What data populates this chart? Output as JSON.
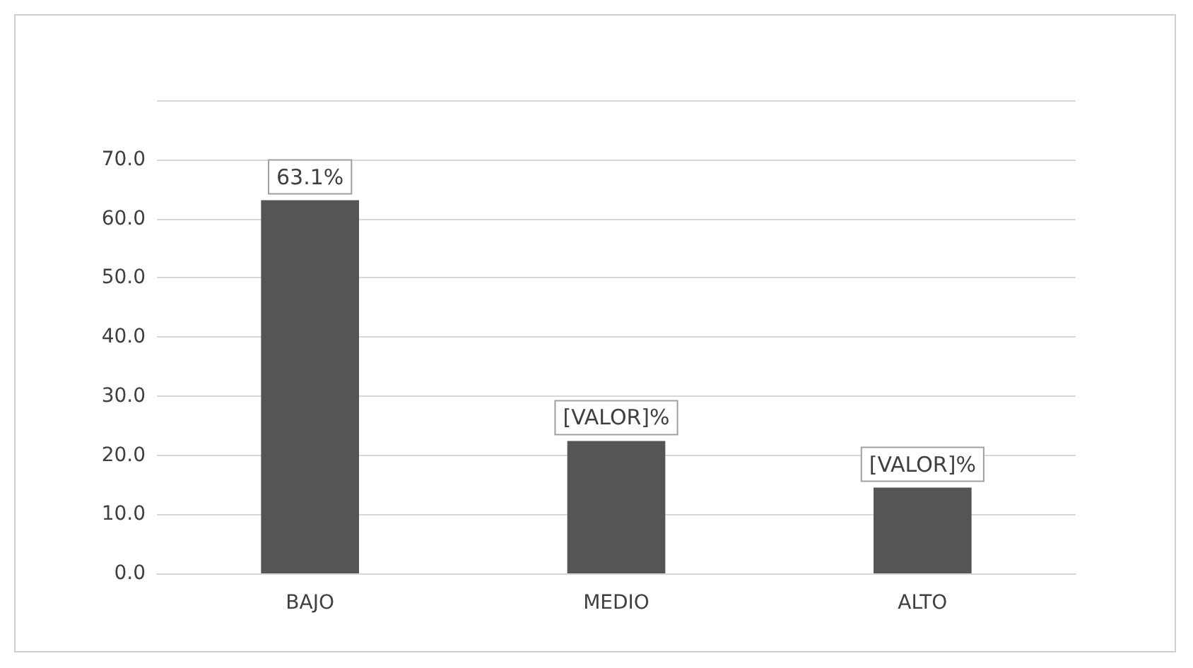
{
  "chart_data": {
    "type": "bar",
    "categories": [
      "BAJO",
      "MEDIO",
      "ALTO"
    ],
    "values": [
      63.1,
      22.4,
      14.5
    ],
    "color": "#555555",
    "value_labels": [
      "63.1%",
      "[VALOR]%",
      "[VALOR]%"
    ],
    "ylim": [
      0,
      80
    ],
    "yticks": [
      {
        "value": 0,
        "label": "0.0"
      },
      {
        "value": 10,
        "label": "10.0"
      },
      {
        "value": 20,
        "label": "20.0"
      },
      {
        "value": 30,
        "label": "30.0"
      },
      {
        "value": 40,
        "label": "40.0"
      },
      {
        "value": 50,
        "label": "50.0"
      },
      {
        "value": 60,
        "label": "60.0"
      },
      {
        "value": 70,
        "label": "70.0"
      },
      {
        "value": 80,
        "label": null
      }
    ],
    "grid": true
  }
}
